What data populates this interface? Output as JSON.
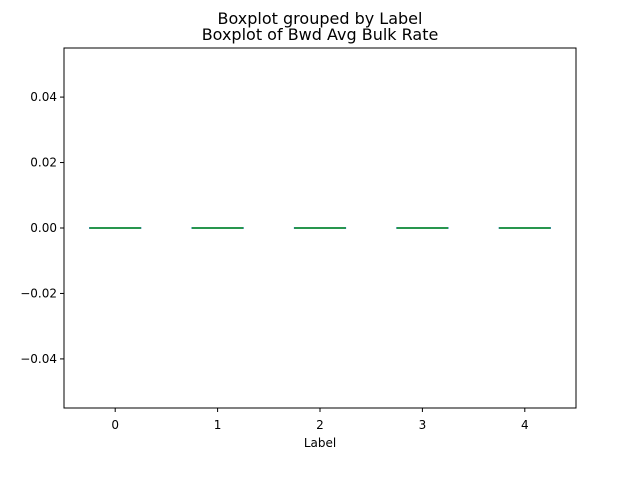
{
  "suptitle": "Boxplot grouped by Label",
  "chart_data": {
    "type": "box",
    "title": "Boxplot of Bwd Avg Bulk Rate",
    "xlabel": "Label",
    "ylabel": "",
    "categories": [
      "0",
      "1",
      "2",
      "3",
      "4"
    ],
    "boxes": [
      {
        "category": "0",
        "min": 0.0,
        "q1": 0.0,
        "median": 0.0,
        "q3": 0.0,
        "max": 0.0
      },
      {
        "category": "1",
        "min": 0.0,
        "q1": 0.0,
        "median": 0.0,
        "q3": 0.0,
        "max": 0.0
      },
      {
        "category": "2",
        "min": 0.0,
        "q1": 0.0,
        "median": 0.0,
        "q3": 0.0,
        "max": 0.0
      },
      {
        "category": "3",
        "min": 0.0,
        "q1": 0.0,
        "median": 0.0,
        "q3": 0.0,
        "max": 0.0
      },
      {
        "category": "4",
        "min": 0.0,
        "q1": 0.0,
        "median": 0.0,
        "q3": 0.0,
        "max": 0.0
      }
    ],
    "ylim": [
      -0.055,
      0.055
    ],
    "yticks": [
      -0.04,
      -0.02,
      0.0,
      0.02,
      0.04
    ],
    "ytick_labels": [
      "−0.04",
      "−0.02",
      "0.00",
      "0.02",
      "0.04"
    ],
    "grid": false,
    "legend": "none",
    "colors": {
      "box": "#1f77b4",
      "median": "#2ca02c",
      "axes": "#000000"
    }
  }
}
